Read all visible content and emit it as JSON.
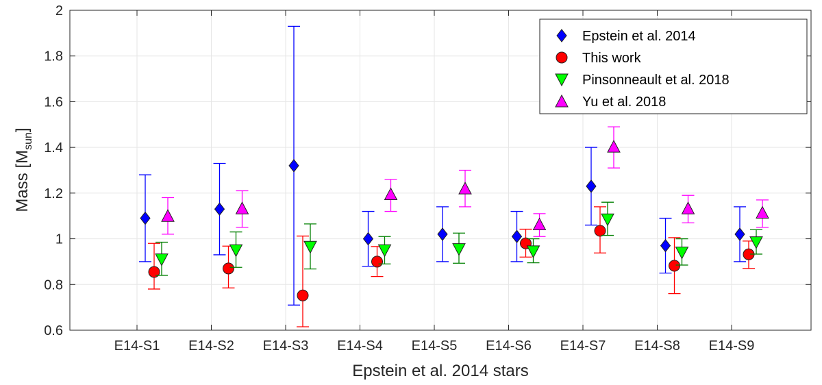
{
  "chart_data": {
    "type": "scatter",
    "title": "",
    "xlabel": "Epstein et al. 2014 stars",
    "ylabel": "Mass [M",
    "ylabel_sub": "sun",
    "ylabel_close": "]",
    "ylim": [
      0.6,
      2.0
    ],
    "yticks": [
      0.6,
      0.8,
      1.0,
      1.2,
      1.4,
      1.6,
      1.8,
      2.0
    ],
    "ytick_labels": [
      "0.6",
      "0.8",
      "1",
      "1.2",
      "1.4",
      "1.6",
      "1.8",
      "2"
    ],
    "grid": true,
    "legend_position": "top-right",
    "categories": [
      "E14-S1",
      "E14-S2",
      "E14-S3",
      "E14-S4",
      "E14-S5",
      "E14-S6",
      "E14-S7",
      "E14-S8",
      "E14-S9"
    ],
    "series": [
      {
        "name": "Epstein et al. 2014",
        "marker": "diamond",
        "color": "#0000ff",
        "error_color": "#0000ff",
        "values": [
          1.09,
          1.13,
          1.32,
          1.0,
          1.02,
          1.01,
          1.23,
          0.97,
          1.02
        ],
        "lower": [
          0.9,
          0.93,
          0.71,
          0.88,
          0.9,
          0.9,
          1.06,
          0.85,
          0.9
        ],
        "upper": [
          1.28,
          1.33,
          1.93,
          1.12,
          1.14,
          1.12,
          1.4,
          1.09,
          1.14
        ]
      },
      {
        "name": "This work",
        "marker": "circle",
        "color": "#ff0000",
        "error_color": "#ff0000",
        "values": [
          0.855,
          0.87,
          0.752,
          0.9,
          null,
          0.98,
          1.035,
          0.882,
          0.932
        ],
        "lower": [
          0.78,
          0.785,
          0.615,
          0.835,
          null,
          0.92,
          0.938,
          0.76,
          0.87
        ],
        "upper": [
          0.98,
          0.968,
          1.012,
          0.966,
          null,
          1.042,
          1.14,
          1.005,
          0.99
        ]
      },
      {
        "name": "Pinsonneault et al. 2018",
        "marker": "triangle-down",
        "color": "#00ff00",
        "error_color": "#008000",
        "values": [
          0.91,
          0.95,
          0.965,
          0.95,
          0.955,
          0.945,
          1.085,
          0.94,
          0.985
        ],
        "lower": [
          0.84,
          0.875,
          0.868,
          0.89,
          0.893,
          0.895,
          1.015,
          0.885,
          0.933
        ],
        "upper": [
          0.985,
          1.03,
          1.065,
          1.01,
          1.025,
          1.0,
          1.16,
          1.0,
          1.04
        ]
      },
      {
        "name": "Yu et al. 2018",
        "marker": "triangle-up",
        "color": "#ff00ff",
        "error_color": "#ff00ff",
        "values": [
          1.1,
          1.133,
          null,
          1.195,
          1.22,
          1.063,
          1.403,
          1.133,
          1.114
        ],
        "lower": [
          1.02,
          1.05,
          null,
          1.12,
          1.14,
          1.01,
          1.31,
          1.07,
          1.05
        ],
        "upper": [
          1.18,
          1.21,
          null,
          1.26,
          1.3,
          1.11,
          1.49,
          1.19,
          1.17
        ]
      }
    ]
  }
}
